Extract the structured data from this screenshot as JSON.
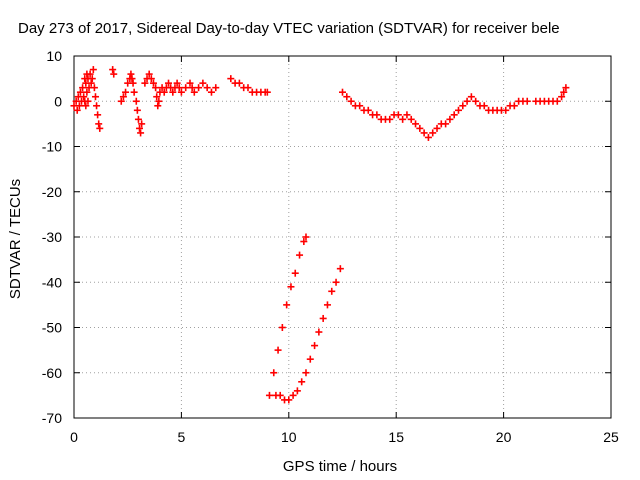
{
  "chart_data": {
    "type": "scatter",
    "title": "Day 273 of 2017, Sidereal Day-to-day VTEC variation (SDTVAR) for receiver bele",
    "xlabel": "GPS time / hours",
    "ylabel": "SDTVAR / TECUs",
    "xlim": [
      0,
      25
    ],
    "ylim": [
      -70,
      10
    ],
    "xticks": [
      0,
      5,
      10,
      15,
      20,
      25
    ],
    "yticks": [
      -70,
      -60,
      -50,
      -40,
      -30,
      -20,
      -10,
      0,
      10
    ],
    "grid": true,
    "marker": "+",
    "color": "#ff0000",
    "series": [
      {
        "values": [
          [
            0.0,
            -1
          ],
          [
            0.1,
            0
          ],
          [
            0.15,
            -2
          ],
          [
            0.2,
            1
          ],
          [
            0.25,
            -1
          ],
          [
            0.3,
            2
          ],
          [
            0.35,
            0
          ],
          [
            0.4,
            3
          ],
          [
            0.45,
            1
          ],
          [
            0.5,
            5
          ],
          [
            0.55,
            4
          ],
          [
            0.6,
            6
          ],
          [
            0.65,
            5
          ],
          [
            0.7,
            3
          ],
          [
            0.75,
            6
          ],
          [
            0.8,
            4
          ],
          [
            0.85,
            5
          ],
          [
            0.9,
            7
          ],
          [
            0.95,
            3
          ],
          [
            1.0,
            1
          ],
          [
            1.05,
            -1
          ],
          [
            1.1,
            -3
          ],
          [
            1.15,
            -5
          ],
          [
            1.2,
            -6
          ],
          [
            0.5,
            0
          ],
          [
            0.55,
            -1
          ],
          [
            0.6,
            2
          ],
          [
            0.65,
            0
          ],
          [
            1.8,
            7
          ],
          [
            1.85,
            6
          ],
          [
            2.2,
            0
          ],
          [
            2.3,
            1
          ],
          [
            2.4,
            2
          ],
          [
            2.5,
            4
          ],
          [
            2.6,
            5
          ],
          [
            2.65,
            6
          ],
          [
            2.7,
            5
          ],
          [
            2.75,
            4
          ],
          [
            2.8,
            2
          ],
          [
            2.9,
            0
          ],
          [
            2.95,
            -2
          ],
          [
            3.0,
            -4
          ],
          [
            3.05,
            -6
          ],
          [
            3.1,
            -7
          ],
          [
            3.15,
            -5
          ],
          [
            3.3,
            4
          ],
          [
            3.4,
            5
          ],
          [
            3.5,
            6
          ],
          [
            3.6,
            5
          ],
          [
            3.7,
            4
          ],
          [
            3.8,
            3
          ],
          [
            3.85,
            1
          ],
          [
            3.9,
            -1
          ],
          [
            3.95,
            0
          ],
          [
            4.0,
            2
          ],
          [
            4.1,
            3
          ],
          [
            4.2,
            2
          ],
          [
            4.3,
            3
          ],
          [
            4.4,
            4
          ],
          [
            4.5,
            3
          ],
          [
            4.6,
            2
          ],
          [
            4.7,
            3
          ],
          [
            4.8,
            4
          ],
          [
            4.9,
            3
          ],
          [
            5.0,
            2
          ],
          [
            5.2,
            3
          ],
          [
            5.4,
            4
          ],
          [
            5.5,
            3
          ],
          [
            5.6,
            2
          ],
          [
            5.8,
            3
          ],
          [
            6.0,
            4
          ],
          [
            6.2,
            3
          ],
          [
            6.4,
            2
          ],
          [
            6.6,
            3
          ],
          [
            7.3,
            5
          ],
          [
            7.5,
            4
          ],
          [
            7.7,
            4
          ],
          [
            7.9,
            3
          ],
          [
            8.1,
            3
          ],
          [
            8.3,
            2
          ],
          [
            8.5,
            2
          ],
          [
            8.7,
            2
          ],
          [
            8.9,
            2
          ],
          [
            9.0,
            2
          ],
          [
            9.1,
            -65
          ],
          [
            9.3,
            -60
          ],
          [
            9.5,
            -55
          ],
          [
            9.7,
            -50
          ],
          [
            9.9,
            -45
          ],
          [
            10.1,
            -41
          ],
          [
            10.3,
            -38
          ],
          [
            10.5,
            -34
          ],
          [
            10.7,
            -31
          ],
          [
            10.8,
            -30
          ],
          [
            9.4,
            -65
          ],
          [
            9.6,
            -65
          ],
          [
            9.8,
            -66
          ],
          [
            10.0,
            -66
          ],
          [
            10.2,
            -65
          ],
          [
            10.4,
            -64
          ],
          [
            10.6,
            -62
          ],
          [
            10.8,
            -60
          ],
          [
            11.0,
            -57
          ],
          [
            11.2,
            -54
          ],
          [
            11.4,
            -51
          ],
          [
            11.6,
            -48
          ],
          [
            11.8,
            -45
          ],
          [
            12.0,
            -42
          ],
          [
            12.2,
            -40
          ],
          [
            12.4,
            -37
          ],
          [
            12.5,
            2
          ],
          [
            12.7,
            1
          ],
          [
            12.9,
            0
          ],
          [
            13.1,
            -1
          ],
          [
            13.3,
            -1
          ],
          [
            13.5,
            -2
          ],
          [
            13.7,
            -2
          ],
          [
            13.9,
            -3
          ],
          [
            14.1,
            -3
          ],
          [
            14.3,
            -4
          ],
          [
            14.5,
            -4
          ],
          [
            14.7,
            -4
          ],
          [
            14.9,
            -3
          ],
          [
            15.1,
            -3
          ],
          [
            15.3,
            -4
          ],
          [
            15.5,
            -3
          ],
          [
            15.7,
            -4
          ],
          [
            15.9,
            -5
          ],
          [
            16.1,
            -6
          ],
          [
            16.3,
            -7
          ],
          [
            16.5,
            -8
          ],
          [
            16.7,
            -7
          ],
          [
            16.9,
            -6
          ],
          [
            17.1,
            -5
          ],
          [
            17.3,
            -5
          ],
          [
            17.5,
            -4
          ],
          [
            17.7,
            -3
          ],
          [
            17.9,
            -2
          ],
          [
            18.1,
            -1
          ],
          [
            18.3,
            0
          ],
          [
            18.5,
            1
          ],
          [
            18.7,
            0
          ],
          [
            18.9,
            -1
          ],
          [
            19.1,
            -1
          ],
          [
            19.3,
            -2
          ],
          [
            19.5,
            -2
          ],
          [
            19.7,
            -2
          ],
          [
            19.9,
            -2
          ],
          [
            20.1,
            -2
          ],
          [
            20.3,
            -1
          ],
          [
            20.5,
            -1
          ],
          [
            20.7,
            0
          ],
          [
            20.9,
            0
          ],
          [
            21.1,
            0
          ],
          [
            21.5,
            0
          ],
          [
            21.7,
            0
          ],
          [
            21.9,
            0
          ],
          [
            22.1,
            0
          ],
          [
            22.3,
            0
          ],
          [
            22.5,
            0
          ],
          [
            22.7,
            1
          ],
          [
            22.8,
            2
          ],
          [
            22.9,
            3
          ]
        ]
      }
    ]
  }
}
